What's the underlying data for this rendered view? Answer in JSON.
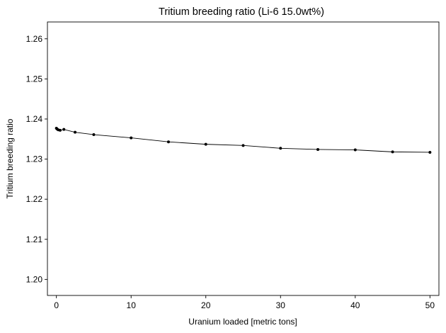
{
  "chart_data": {
    "type": "line",
    "title": "Tritium breeding ratio (Li-6 15.0wt%)",
    "xlabel": "Uranium loaded [metric tons]",
    "ylabel": "Tritium breeding ratio",
    "xlim": [
      -1.2,
      51.2
    ],
    "ylim": [
      1.196,
      1.2642
    ],
    "xticks": [
      0,
      10,
      20,
      30,
      40,
      50
    ],
    "xtick_labels": [
      "0",
      "10",
      "20",
      "30",
      "40",
      "50"
    ],
    "yticks": [
      1.2,
      1.21,
      1.22,
      1.23,
      1.24,
      1.25,
      1.26
    ],
    "ytick_labels": [
      "1.20",
      "1.21",
      "1.22",
      "1.23",
      "1.24",
      "1.25",
      "1.26"
    ],
    "grid": false,
    "legend": "none",
    "series": [
      {
        "color": "#000000",
        "marker": "circle",
        "x": [
          0,
          0.1,
          0.25,
          0.5,
          1,
          2.5,
          5,
          10,
          15,
          20,
          25,
          30,
          35,
          40,
          45,
          50
        ],
        "y": [
          1.2377,
          1.2375,
          1.2373,
          1.2372,
          1.2374,
          1.2367,
          1.2361,
          1.2353,
          1.2343,
          1.2337,
          1.2334,
          1.2327,
          1.2324,
          1.2323,
          1.2318,
          1.2317
        ]
      }
    ]
  }
}
